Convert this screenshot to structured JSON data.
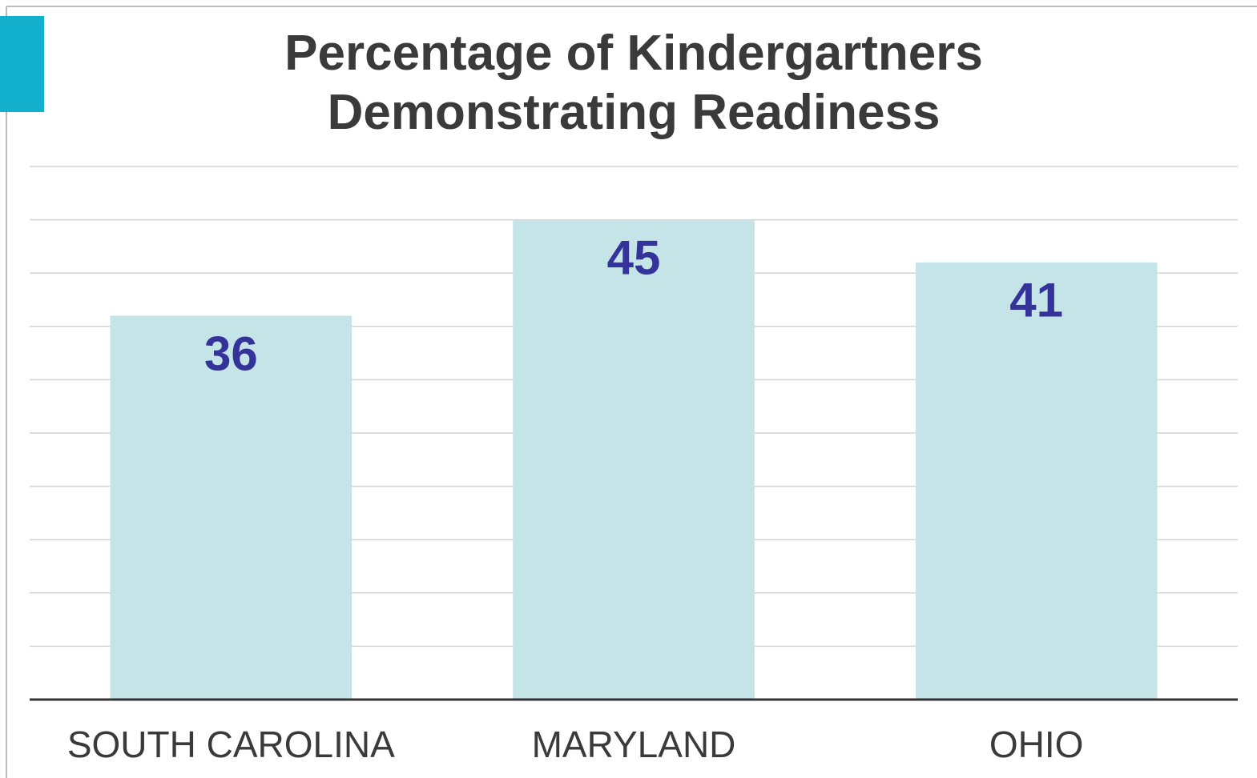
{
  "chart_data": {
    "type": "bar",
    "title": "Percentage of Kindergartners Demonstrating Readiness",
    "categories": [
      "SOUTH CAROLINA",
      "MARYLAND",
      "OHIO"
    ],
    "values": [
      36,
      45,
      41
    ],
    "color": "#c5e4e8",
    "ylim": [
      0,
      50
    ],
    "yticks": [
      0,
      5,
      10,
      15,
      20,
      25,
      30,
      35,
      40,
      45,
      50
    ],
    "grid": true
  }
}
